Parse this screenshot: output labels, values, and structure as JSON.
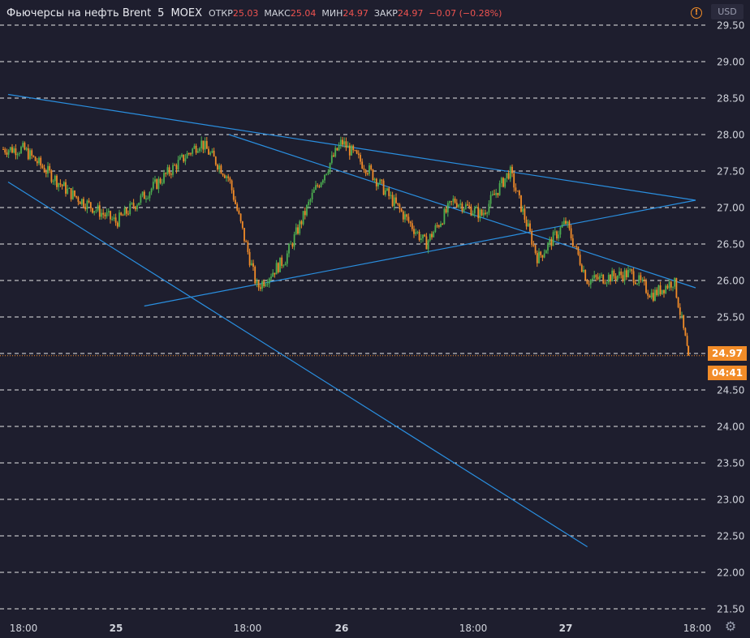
{
  "header": {
    "symbol": "Фьючерсы на нефть Brent",
    "interval": "5",
    "exchange": "MOEX",
    "open_label": "ОТКР",
    "open_value": "25.03",
    "high_label": "МАКС",
    "high_value": "25.04",
    "low_label": "МИН",
    "low_value": "24.97",
    "close_label": "ЗАКР",
    "close_value": "24.97",
    "change_value": "−0.07 (−0.28%)"
  },
  "currency": "USD",
  "last_price_label": "24.97",
  "countdown_label": "04:41",
  "warning_icon": "warning-icon",
  "settings_icon": "gear-icon",
  "colors": {
    "background": "#1e1e2e",
    "up": "#4caf50",
    "down": "#f28c28",
    "trendline": "#2a8fe0",
    "grid": "#e6e6e6",
    "down_value_text": "#ef5350",
    "price_label_bg": "#f28c28"
  },
  "chart_data": {
    "type": "line",
    "title": "Фьючерсы на нефть Brent · 5 · MOEX",
    "xlabel": "",
    "ylabel": "",
    "y_ticks": [
      "21.50",
      "22.00",
      "22.50",
      "23.00",
      "23.50",
      "24.00",
      "24.50",
      "25.00",
      "25.50",
      "26.00",
      "26.50",
      "27.00",
      "27.50",
      "28.00",
      "28.50",
      "29.00",
      "29.50"
    ],
    "x_ticks": [
      "18:00",
      "25",
      "18:00",
      "26",
      "18:00",
      "27",
      "18:00"
    ],
    "ylim": [
      21.5,
      29.5
    ],
    "grid": true,
    "last_value": 24.97,
    "series": [
      {
        "x": [
          "24 18:00",
          "24 21:00",
          "25 00:00",
          "25 09:00",
          "25 12:00",
          "25 15:00",
          "25 18:00",
          "25 21:00",
          "26 00:00",
          "26 03:00",
          "26 09:00",
          "26 12:00",
          "26 15:00",
          "26 18:00",
          "26 21:00",
          "27 00:00",
          "27 03:00",
          "27 09:00",
          "27 12:00",
          "27 15:00",
          "27 17:00"
        ],
        "values": [
          27.8,
          27.2,
          26.8,
          27.9,
          27.4,
          25.9,
          26.3,
          27.2,
          27.9,
          27.5,
          26.5,
          27.1,
          26.9,
          27.5,
          26.3,
          26.8,
          26.0,
          26.1,
          25.8,
          26.0,
          24.97
        ]
      }
    ],
    "trendlines": [
      {
        "from": [
          "24 17:00",
          28.55
        ],
        "to": [
          "27 18:00",
          27.1
        ]
      },
      {
        "from": [
          "25 03:00",
          25.65
        ],
        "to": [
          "27 18:00",
          27.1
        ]
      },
      {
        "from": [
          "24 17:00",
          27.35
        ],
        "to": [
          "27 03:00",
          22.35
        ]
      },
      {
        "from": [
          "25 12:00",
          28.0
        ],
        "to": [
          "27 18:00",
          25.9
        ]
      }
    ]
  }
}
